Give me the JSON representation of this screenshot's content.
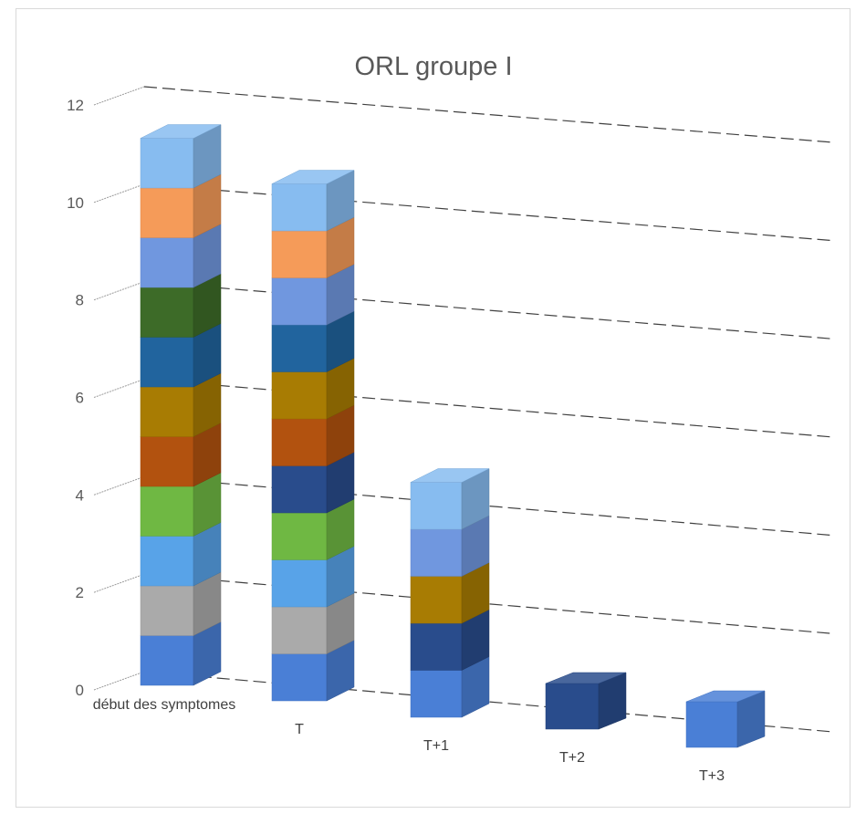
{
  "chart_data": {
    "type": "bar",
    "stacked": true,
    "three_d": true,
    "title": "ORL groupe I",
    "xlabel": "",
    "ylabel": "",
    "ylim": [
      0,
      12
    ],
    "y_ticks": [
      "0",
      "2",
      "4",
      "6",
      "8",
      "10",
      "12"
    ],
    "categories": [
      "début des symptomes",
      "T",
      "T+1",
      "T+2",
      "T+3"
    ],
    "grid": true,
    "legend": "none",
    "series": [
      {
        "color": "#4a7fd6",
        "values": [
          1,
          1,
          1,
          0,
          1
        ]
      },
      {
        "color": "#aaaaaa",
        "values": [
          1,
          1,
          0,
          0,
          0
        ]
      },
      {
        "color": "#58a3e8",
        "values": [
          1,
          1,
          0,
          0,
          0
        ]
      },
      {
        "color": "#6fb843",
        "values": [
          1,
          1,
          0,
          0,
          0
        ]
      },
      {
        "color": "#294c8c",
        "values": [
          0,
          1,
          1,
          1,
          0
        ]
      },
      {
        "color": "#b2520f",
        "values": [
          1,
          1,
          0,
          0,
          0
        ]
      },
      {
        "color": "#a87c03",
        "values": [
          1,
          1,
          1,
          0,
          0
        ]
      },
      {
        "color": "#21649e",
        "values": [
          1,
          1,
          0,
          0,
          0
        ]
      },
      {
        "color": "#3d6b28",
        "values": [
          1,
          0,
          0,
          0,
          0
        ]
      },
      {
        "color": "#7097df",
        "values": [
          1,
          1,
          1,
          0,
          0
        ]
      },
      {
        "color": "#f59b59",
        "values": [
          1,
          1,
          0,
          0,
          0
        ]
      },
      {
        "color": "#87bcf0",
        "values": [
          1,
          1,
          1,
          0,
          0
        ]
      }
    ]
  }
}
